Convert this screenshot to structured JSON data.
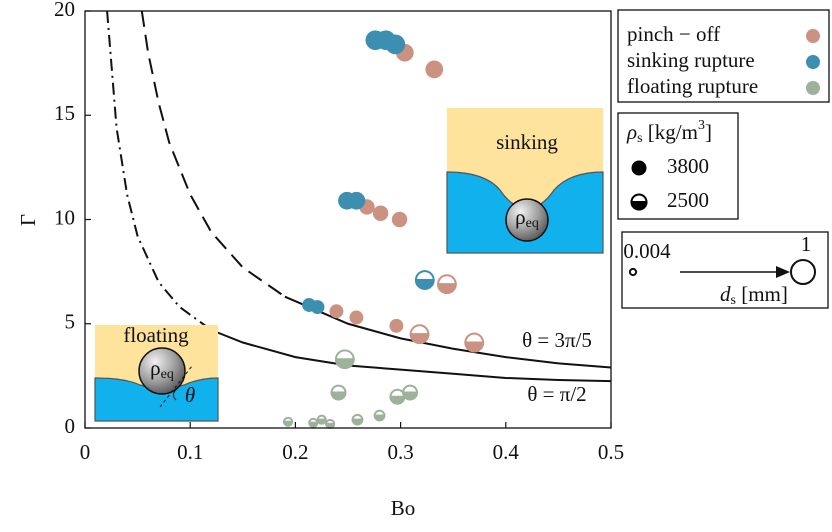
{
  "chart_data": {
    "type": "scatter",
    "xlabel": "Bo",
    "ylabel": "Γ",
    "xlim": [
      0,
      0.5
    ],
    "ylim": [
      0,
      20
    ],
    "xticks": [
      0,
      0.1,
      0.2,
      0.3,
      0.4,
      0.5
    ],
    "yticks": [
      0,
      5,
      10,
      15,
      20
    ],
    "series": [
      {
        "name": "pinch − off",
        "color": "#cc9281",
        "x": [
          0.304,
          0.332,
          0.268,
          0.281,
          0.299,
          0.239,
          0.258,
          0.296,
          0.344,
          0.318,
          0.37
        ],
        "values": [
          18.0,
          17.2,
          10.6,
          10.3,
          10.0,
          5.6,
          5.3,
          4.9,
          6.9,
          4.5,
          4.1
        ],
        "sizes": [
          0.45,
          0.45,
          0.3,
          0.3,
          0.3,
          0.22,
          0.22,
          0.22,
          0.45,
          0.45,
          0.45
        ],
        "densities": [
          3800,
          3800,
          3800,
          3800,
          3800,
          3800,
          3800,
          3800,
          2500,
          2500,
          2500
        ]
      },
      {
        "name": "sinking rupture",
        "color": "#3d8fb1",
        "x": [
          0.276,
          0.286,
          0.295,
          0.249,
          0.258,
          0.213,
          0.221,
          0.323
        ],
        "values": [
          18.6,
          18.6,
          18.4,
          10.9,
          10.9,
          5.9,
          5.8,
          7.1
        ],
        "sizes": [
          0.6,
          0.6,
          0.6,
          0.45,
          0.45,
          0.22,
          0.22,
          0.45
        ],
        "densities": [
          3800,
          3800,
          3800,
          3800,
          3800,
          3800,
          3800,
          2500
        ]
      },
      {
        "name": "floating rupture",
        "color": "#9db19b",
        "x": [
          0.247,
          0.241,
          0.297,
          0.309,
          0.193,
          0.217,
          0.225,
          0.233,
          0.259,
          0.28
        ],
        "values": [
          3.3,
          1.7,
          1.5,
          1.7,
          0.3,
          0.25,
          0.4,
          0.2,
          0.4,
          0.6
        ],
        "sizes": [
          0.45,
          0.22,
          0.22,
          0.22,
          0.025,
          0.025,
          0.025,
          0.025,
          0.06,
          0.06
        ],
        "densities": [
          2500,
          2500,
          2500,
          2500,
          2500,
          2500,
          2500,
          2500,
          2500,
          2500
        ]
      }
    ],
    "curves": [
      {
        "style": "dash",
        "x": [
          0.054,
          0.06,
          0.07,
          0.08,
          0.1,
          0.12,
          0.15,
          0.19
        ],
        "values": [
          20.0,
          18.0,
          15.6,
          13.7,
          11.2,
          9.4,
          7.7,
          6.3
        ]
      },
      {
        "style": "solid",
        "x": [
          0.19,
          0.25,
          0.3,
          0.35,
          0.4,
          0.45,
          0.5
        ],
        "values": [
          6.3,
          5.0,
          4.3,
          3.8,
          3.4,
          3.1,
          2.9
        ]
      },
      {
        "style": "dashdot",
        "x": [
          0.021,
          0.03,
          0.04,
          0.05,
          0.07,
          0.09,
          0.12
        ],
        "values": [
          20.0,
          14.4,
          11.2,
          9.2,
          7.0,
          5.8,
          4.7
        ]
      },
      {
        "style": "solid",
        "x": [
          0.12,
          0.15,
          0.2,
          0.25,
          0.3,
          0.35,
          0.4,
          0.45,
          0.5
        ],
        "values": [
          4.7,
          4.1,
          3.4,
          3.0,
          2.8,
          2.6,
          2.4,
          2.3,
          2.25
        ]
      }
    ],
    "curve_labels": [
      "θ = 3π/5",
      "θ = π/2"
    ],
    "density_legend": {
      "title": {
        "symbol": "ρ",
        "subscript": "s",
        "unit": " [kg/m",
        "power": "3",
        "close": "]"
      },
      "entries": [
        {
          "value": 3800,
          "fill": "full"
        },
        {
          "value": 2500,
          "fill": "half"
        }
      ]
    },
    "size_legend": {
      "title": {
        "symbol": "d",
        "subscript": "s",
        "unit": " [mm]"
      },
      "sizes": [
        0.004,
        1
      ]
    }
  },
  "insets": {
    "sinking": "sinking",
    "floating": "floating",
    "rho_eq": {
      "symbol": "ρ",
      "subscript": "eq"
    },
    "angle": "θ"
  }
}
